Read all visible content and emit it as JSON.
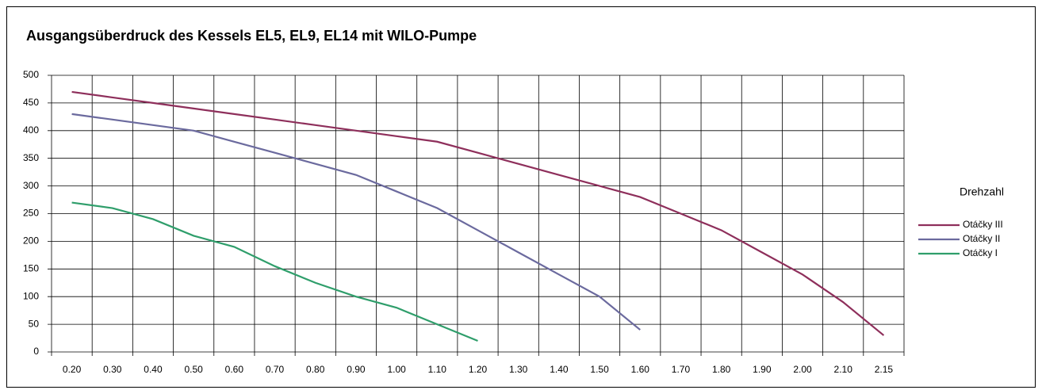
{
  "chart_data": {
    "type": "line",
    "title": "Ausgangsüberdruck des Kessels EL5, EL9, EL14 mit WILO-Pumpe",
    "categories": [
      "0.20",
      "0.30",
      "0.40",
      "0.50",
      "0.60",
      "0.70",
      "0.80",
      "0.90",
      "1.00",
      "1.10",
      "1.20",
      "1.30",
      "1.40",
      "1.50",
      "1.60",
      "1.70",
      "1.80",
      "1.90",
      "2.00",
      "2.10",
      "2.15"
    ],
    "series": [
      {
        "name": "Otáčky III",
        "color": "#8e2f5b",
        "values": [
          470,
          460,
          450,
          440,
          430,
          420,
          410,
          400,
          390,
          380,
          360,
          340,
          320,
          300,
          280,
          250,
          220,
          180,
          140,
          90,
          30
        ]
      },
      {
        "name": "Otáčky II",
        "color": "#6b6a9e",
        "values": [
          430,
          420,
          410,
          400,
          380,
          360,
          340,
          320,
          290,
          260,
          220,
          180,
          140,
          100,
          40,
          null,
          null,
          null,
          null,
          null,
          null
        ]
      },
      {
        "name": "Otáčky I",
        "color": "#2f9e6b",
        "values": [
          270,
          260,
          240,
          210,
          190,
          155,
          125,
          100,
          80,
          50,
          20,
          null,
          null,
          null,
          null,
          null,
          null,
          null,
          null,
          null,
          null
        ]
      }
    ],
    "legend_title": "Drehzahl",
    "legend": "right",
    "ylim": [
      0,
      500
    ],
    "yticks": [
      0,
      50,
      100,
      150,
      200,
      250,
      300,
      350,
      400,
      450,
      500
    ],
    "grid": true
  }
}
